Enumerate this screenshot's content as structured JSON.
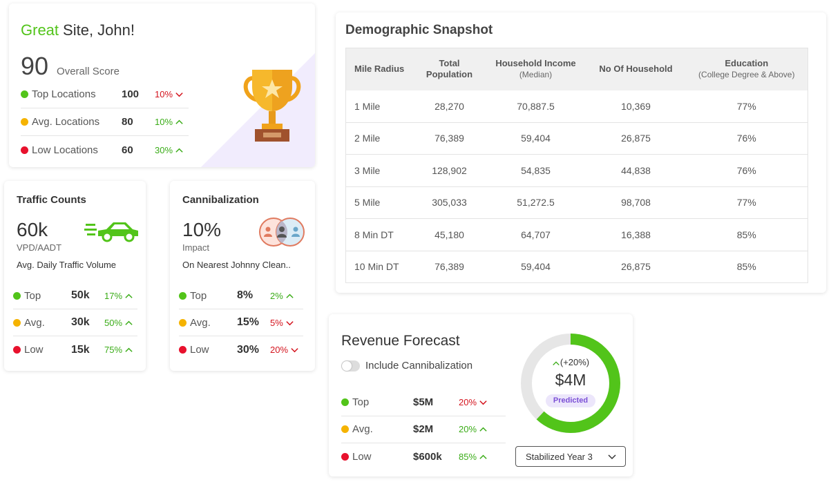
{
  "score_card": {
    "greet_word": "Great",
    "greet_rest": "Site, John!",
    "score": "90",
    "score_label": "Overall Score",
    "rows": [
      {
        "name": "Top Locations",
        "value": "100",
        "pct": "10%",
        "dir": "down"
      },
      {
        "name": "Avg. Locations",
        "value": "80",
        "pct": "10%",
        "dir": "up"
      },
      {
        "name": "Low Locations",
        "value": "60",
        "pct": "30%",
        "dir": "up"
      }
    ]
  },
  "traffic": {
    "title": "Traffic Counts",
    "big": "60k",
    "sub": "VPD/AADT",
    "desc": "Avg. Daily Traffic Volume",
    "rows": [
      {
        "name": "Top",
        "value": "50k",
        "pct": "17%",
        "dir": "up"
      },
      {
        "name": "Avg.",
        "value": "30k",
        "pct": "50%",
        "dir": "up"
      },
      {
        "name": "Low",
        "value": "15k",
        "pct": "75%",
        "dir": "up"
      }
    ]
  },
  "cannibalization": {
    "title": "Cannibalization",
    "big": "10%",
    "sub": "Impact",
    "desc": "On Nearest Johnny Clean..",
    "rows": [
      {
        "name": "Top",
        "value": "8%",
        "pct": "2%",
        "dir": "up"
      },
      {
        "name": "Avg.",
        "value": "15%",
        "pct": "5%",
        "dir": "down"
      },
      {
        "name": "Low",
        "value": "30%",
        "pct": "20%",
        "dir": "down"
      }
    ]
  },
  "demographic": {
    "title": "Demographic Snapshot",
    "headers": [
      {
        "main": "Mile Radius",
        "sub": ""
      },
      {
        "main": "Total Population",
        "sub": ""
      },
      {
        "main": "Household Income",
        "sub": "(Median)"
      },
      {
        "main": "No Of Household",
        "sub": ""
      },
      {
        "main": "Education",
        "sub": "(College Degree & Above)"
      }
    ],
    "rows": [
      [
        "1 Mile",
        "28,270",
        "70,887.5",
        "10,369",
        "77%"
      ],
      [
        "2 Mile",
        "76,389",
        "59,404",
        "26,875",
        "76%"
      ],
      [
        "3 Mile",
        "128,902",
        "54,835",
        "44,838",
        "76%"
      ],
      [
        "5 Mile",
        "305,033",
        "51,272.5",
        "98,708",
        "77%"
      ],
      [
        "8 Min DT",
        "45,180",
        "64,707",
        "16,388",
        "85%"
      ],
      [
        "10 Min DT",
        "76,389",
        "59,404",
        "26,875",
        "85%"
      ]
    ]
  },
  "revenue": {
    "title": "Revenue Forecast",
    "toggle_label": "Include Cannibalization",
    "rows": [
      {
        "name": "Top",
        "value": "$5M",
        "pct": "20%",
        "dir": "down"
      },
      {
        "name": "Avg.",
        "value": "$2M",
        "pct": "20%",
        "dir": "up"
      },
      {
        "name": "Low",
        "value": "$600k",
        "pct": "85%",
        "dir": "up"
      }
    ],
    "donut_change": "(+20%)",
    "donut_value": "$4M",
    "donut_badge": "Predicted",
    "donut_fraction": 0.62,
    "select_value": "Stabilized Year 3"
  },
  "colors": {
    "green": "#52c41a",
    "yellow": "#f5b301",
    "red": "#e8112d",
    "purple_accent": "#7b4fd6"
  }
}
